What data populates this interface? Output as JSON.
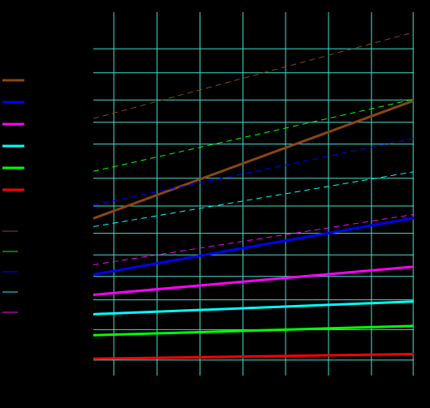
{
  "chart_data": {
    "type": "line",
    "title": "",
    "xlabel": "",
    "ylabel": "",
    "xlim": [
      0,
      10
    ],
    "ylim": [
      0,
      23.5
    ],
    "xgrid": [
      0.64,
      1.99,
      3.33,
      4.67,
      6.0,
      7.34,
      8.68,
      9.98
    ],
    "ygrid": [
      1.0,
      2.97,
      4.9,
      6.41,
      7.8,
      9.2,
      10.96,
      12.76,
      14.97,
      16.38,
      17.82,
      19.58,
      21.13
    ],
    "background": "#000000",
    "grid_color": "#40e0d0",
    "legend_position": "left",
    "series": [
      {
        "color": "#8b4513",
        "style": "solid",
        "width": 3,
        "values": [
          10.16,
          17.78
        ]
      },
      {
        "color": "#0000ff",
        "style": "solid",
        "width": 3,
        "values": [
          6.53,
          10.19
        ]
      },
      {
        "color": "#ff00ff",
        "style": "solid",
        "width": 3,
        "values": [
          5.22,
          7.04
        ]
      },
      {
        "color": "#00ffff",
        "style": "solid",
        "width": 3,
        "values": [
          3.97,
          4.79
        ]
      },
      {
        "color": "#00ff00",
        "style": "solid",
        "width": 3,
        "values": [
          2.61,
          3.21
        ]
      },
      {
        "color": "#ff0000",
        "style": "solid",
        "width": 3,
        "values": [
          1.09,
          1.39
        ]
      },
      {
        "color": "#8b4513",
        "style": "dashed",
        "width": 1,
        "values": [
          16.62,
          22.2
        ]
      },
      {
        "color": "#00ff00",
        "style": "dashed",
        "width": 1,
        "values": [
          13.21,
          17.87
        ]
      },
      {
        "color": "#0000ff",
        "style": "dashed",
        "width": 1,
        "values": [
          11.03,
          15.33
        ]
      },
      {
        "color": "#00ffff",
        "style": "dashed",
        "width": 1,
        "values": [
          9.63,
          13.18
        ]
      },
      {
        "color": "#ff00ff",
        "style": "dashed",
        "width": 1,
        "values": [
          7.16,
          10.42
        ]
      }
    ]
  }
}
